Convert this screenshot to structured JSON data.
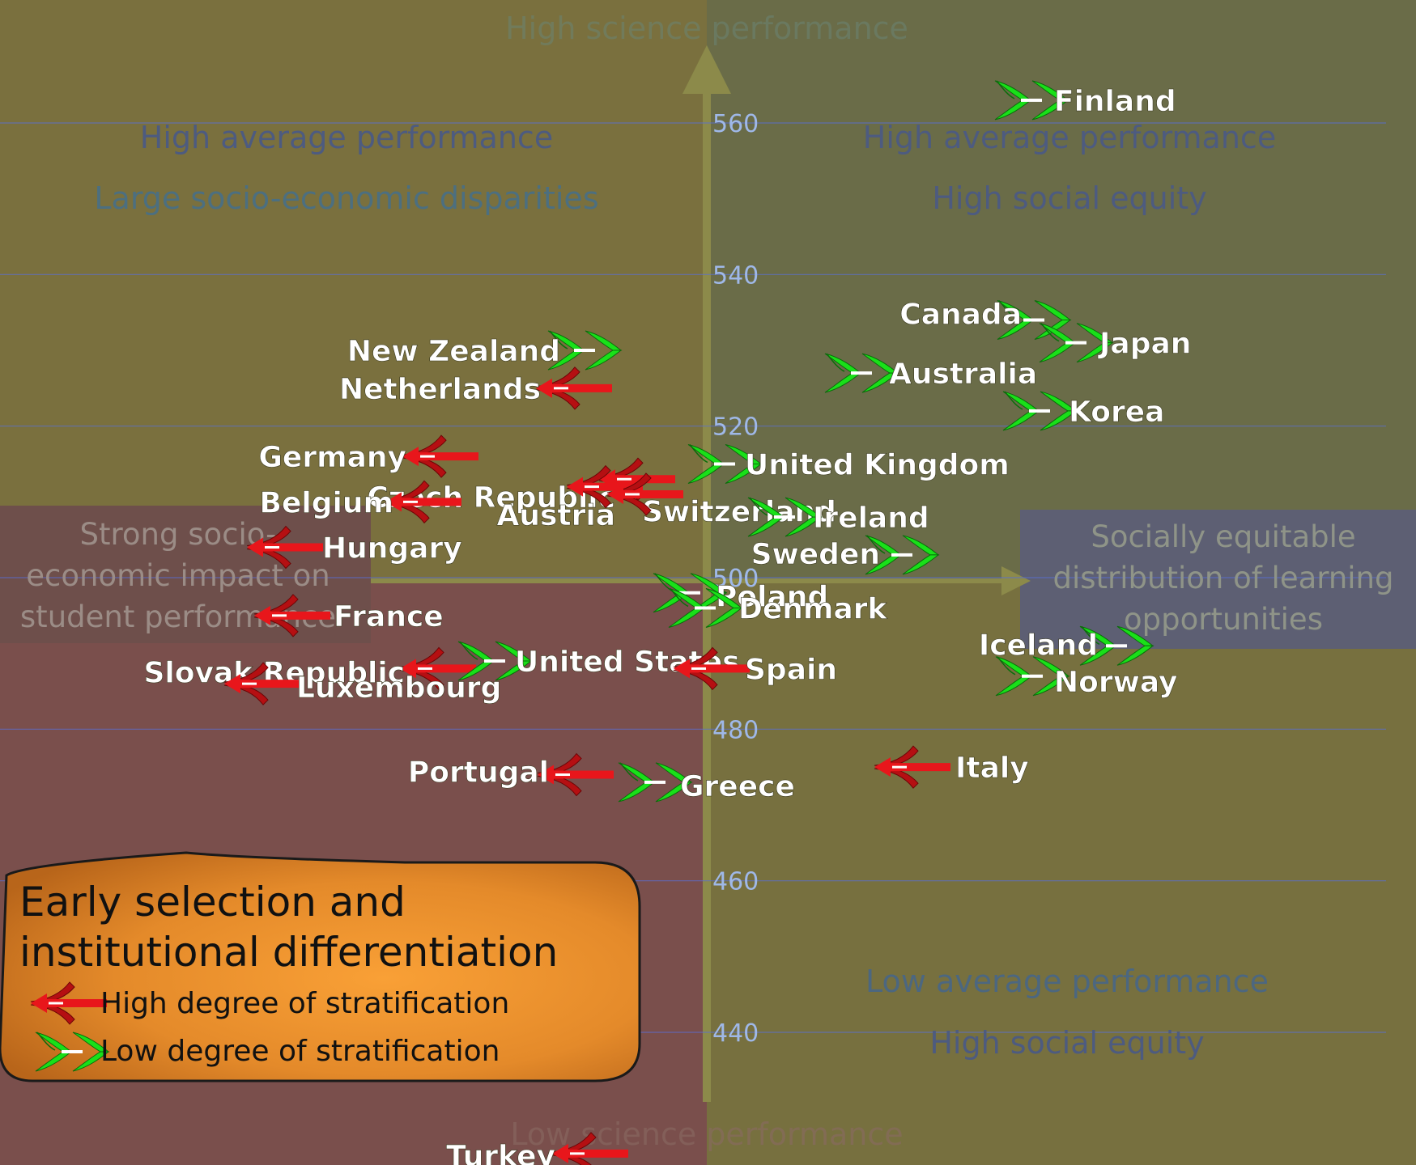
{
  "colors": {
    "high_strat": "#e8161b",
    "low_strat": "#19e019",
    "grid": "#5a6fd6",
    "tick_label": "#9fb8e8"
  },
  "quadrants": {
    "top": "High science performance",
    "bottom": "Low science performance",
    "top_left_1": "High average performance",
    "top_left_2": "Large socio-economic disparities",
    "top_right_1": "High average performance",
    "top_right_2": "High social equity",
    "bottom_right_1": "Low average performance",
    "bottom_right_2": "High social equity",
    "left_line_1": "Strong socio-",
    "left_line_2": "economic impact on",
    "left_line_3": "student performance",
    "right_line_1": "Socially equitable",
    "right_line_2": "distribution of learning",
    "right_line_3": "opportunities"
  },
  "legend": {
    "title_1": "Early selection and",
    "title_2": "institutional differentiation",
    "high": "High degree of stratification",
    "low": "Low degree of stratification"
  },
  "chart_data": {
    "type": "scatter",
    "y_ticks": [
      440,
      460,
      480,
      500,
      520,
      540,
      560
    ],
    "ylim": [
      422,
      573
    ],
    "y_label_500": "500",
    "grid": true,
    "points": [
      {
        "name": "Finland",
        "y": 563,
        "strat": "low"
      },
      {
        "name": "Canada",
        "y": 534,
        "strat": "low"
      },
      {
        "name": "Japan",
        "y": 531,
        "strat": "low"
      },
      {
        "name": "Australia",
        "y": 527,
        "strat": "low"
      },
      {
        "name": "Korea",
        "y": 522,
        "strat": "low"
      },
      {
        "name": "New Zealand",
        "y": 530,
        "strat": "low"
      },
      {
        "name": "Netherlands",
        "y": 525,
        "strat": "high"
      },
      {
        "name": "Germany",
        "y": 516,
        "strat": "high"
      },
      {
        "name": "Czech Republic",
        "y": 513,
        "strat": "high"
      },
      {
        "name": "Switzerland",
        "y": 512,
        "strat": "high"
      },
      {
        "name": "Austria",
        "y": 511,
        "strat": "high"
      },
      {
        "name": "Belgium",
        "y": 510,
        "strat": "high"
      },
      {
        "name": "United Kingdom",
        "y": 515,
        "strat": "low"
      },
      {
        "name": "Ireland",
        "y": 508,
        "strat": "low"
      },
      {
        "name": "Hungary",
        "y": 504,
        "strat": "high"
      },
      {
        "name": "Sweden",
        "y": 503,
        "strat": "low"
      },
      {
        "name": "Poland",
        "y": 498,
        "strat": "low"
      },
      {
        "name": "Denmark",
        "y": 496,
        "strat": "low"
      },
      {
        "name": "France",
        "y": 495,
        "strat": "high"
      },
      {
        "name": "Slovak Republic",
        "y": 488,
        "strat": "high"
      },
      {
        "name": "United States",
        "y": 489,
        "strat": "low"
      },
      {
        "name": "Spain",
        "y": 488,
        "strat": "high"
      },
      {
        "name": "Iceland",
        "y": 491,
        "strat": "low"
      },
      {
        "name": "Norway",
        "y": 487,
        "strat": "low"
      },
      {
        "name": "Luxembourg",
        "y": 486,
        "strat": "high"
      },
      {
        "name": "Italy",
        "y": 475,
        "strat": "high"
      },
      {
        "name": "Portugal",
        "y": 474,
        "strat": "high"
      },
      {
        "name": "Greece",
        "y": 473,
        "strat": "low"
      },
      {
        "name": "Turkey",
        "y": 424,
        "strat": "high"
      }
    ]
  }
}
